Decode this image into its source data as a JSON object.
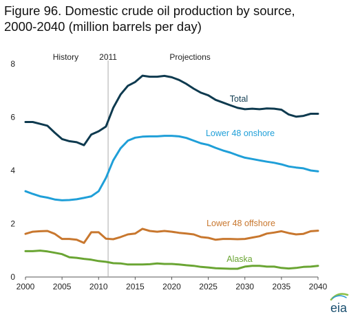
{
  "title_line1": "Figure 96. Domestic crude oil production by source,",
  "title_line2": "2000-2040 (million barrels per day)",
  "logo_text": "eia",
  "chart_data": {
    "type": "line",
    "title": "Figure 96. Domestic crude oil production by source, 2000-2040 (million barrels per day)",
    "xlabel": "",
    "ylabel": "",
    "xlim": [
      2000,
      2040
    ],
    "ylim": [
      0,
      8
    ],
    "xticks": [
      2000,
      2005,
      2010,
      2015,
      2020,
      2025,
      2030,
      2035,
      2040
    ],
    "yticks": [
      0,
      2,
      4,
      6,
      8
    ],
    "grid": false,
    "legend": "none",
    "annotations": {
      "history": "History",
      "divider_year_label": "2011",
      "divider_year": 2011.3,
      "projections": "Projections"
    },
    "x": [
      2000,
      2001,
      2002,
      2003,
      2004,
      2005,
      2006,
      2007,
      2008,
      2009,
      2010,
      2011,
      2012,
      2013,
      2014,
      2015,
      2016,
      2017,
      2018,
      2019,
      2020,
      2021,
      2022,
      2023,
      2024,
      2025,
      2026,
      2027,
      2028,
      2029,
      2030,
      2031,
      2032,
      2033,
      2034,
      2035,
      2036,
      2037,
      2038,
      2039,
      2040
    ],
    "series": [
      {
        "name": "Total",
        "color": "#0e3a4f",
        "values": [
          5.82,
          5.82,
          5.75,
          5.68,
          5.42,
          5.18,
          5.1,
          5.06,
          4.95,
          5.35,
          5.47,
          5.65,
          6.35,
          6.85,
          7.18,
          7.32,
          7.56,
          7.52,
          7.52,
          7.55,
          7.5,
          7.4,
          7.25,
          7.07,
          6.92,
          6.82,
          6.65,
          6.55,
          6.45,
          6.35,
          6.3,
          6.32,
          6.3,
          6.33,
          6.32,
          6.28,
          6.1,
          6.02,
          6.05,
          6.13,
          6.13
        ]
      },
      {
        "name": "Lower 48 onshore",
        "color": "#1f9fd8",
        "values": [
          3.22,
          3.12,
          3.03,
          2.98,
          2.91,
          2.88,
          2.89,
          2.92,
          2.97,
          3.03,
          3.22,
          3.72,
          4.38,
          4.83,
          5.12,
          5.23,
          5.27,
          5.28,
          5.28,
          5.3,
          5.3,
          5.28,
          5.22,
          5.12,
          5.02,
          4.96,
          4.85,
          4.75,
          4.67,
          4.57,
          4.48,
          4.43,
          4.38,
          4.33,
          4.29,
          4.23,
          4.15,
          4.11,
          4.08,
          4.0,
          3.97
        ]
      },
      {
        "name": "Lower 48 offshore",
        "color": "#c8772e",
        "values": [
          1.62,
          1.7,
          1.72,
          1.73,
          1.62,
          1.43,
          1.43,
          1.4,
          1.28,
          1.68,
          1.68,
          1.44,
          1.42,
          1.5,
          1.6,
          1.63,
          1.81,
          1.73,
          1.7,
          1.73,
          1.7,
          1.66,
          1.63,
          1.6,
          1.5,
          1.47,
          1.4,
          1.43,
          1.43,
          1.42,
          1.43,
          1.48,
          1.53,
          1.63,
          1.67,
          1.72,
          1.65,
          1.6,
          1.62,
          1.72,
          1.74
        ]
      },
      {
        "name": "Alaska",
        "color": "#6aa533",
        "values": [
          0.97,
          0.97,
          0.99,
          0.96,
          0.91,
          0.86,
          0.74,
          0.72,
          0.68,
          0.65,
          0.6,
          0.57,
          0.52,
          0.51,
          0.47,
          0.47,
          0.47,
          0.48,
          0.51,
          0.49,
          0.49,
          0.47,
          0.44,
          0.42,
          0.38,
          0.36,
          0.33,
          0.32,
          0.31,
          0.31,
          0.39,
          0.42,
          0.42,
          0.39,
          0.39,
          0.34,
          0.32,
          0.34,
          0.38,
          0.39,
          0.42
        ]
      }
    ],
    "series_labels": [
      {
        "text": "Total",
        "series": "Total"
      },
      {
        "text": "Lower 48 onshore",
        "series": "Lower 48 onshore"
      },
      {
        "text": "Lower 48 offshore",
        "series": "Lower 48 offshore"
      },
      {
        "text": "Alaska",
        "series": "Alaska"
      }
    ]
  }
}
